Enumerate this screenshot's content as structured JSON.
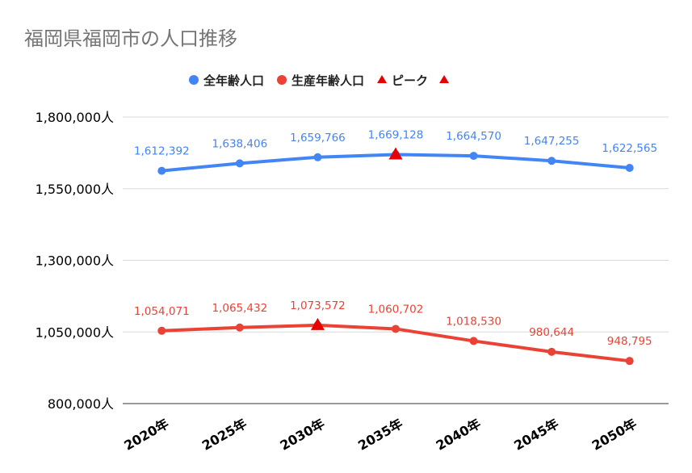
{
  "chart_data": {
    "type": "line",
    "title": "福岡県福岡市の人口推移",
    "xlabel": "",
    "ylabel": "",
    "categories": [
      "2020年",
      "2025年",
      "2030年",
      "2035年",
      "2040年",
      "2045年",
      "2050年"
    ],
    "ylim": [
      800000,
      1800000
    ],
    "yticks": [
      800000,
      1050000,
      1300000,
      1550000,
      1800000
    ],
    "ytick_labels": [
      "800,000人",
      "1,050,000人",
      "1,300,000人",
      "1,550,000人",
      "1,800,000人"
    ],
    "grid": true,
    "legend_position": "top",
    "series": [
      {
        "name": "全年齢人口",
        "color": "#4285f4",
        "values": [
          1612392,
          1638406,
          1659766,
          1669128,
          1664570,
          1647255,
          1622565
        ],
        "labels": [
          "1,612,392",
          "1,638,406",
          "1,659,766",
          "1,669,128",
          "1,664,570",
          "1,647,255",
          "1,622,565"
        ]
      },
      {
        "name": "生産年齢人口",
        "color": "#ea4335",
        "values": [
          1054071,
          1065432,
          1073572,
          1060702,
          1018530,
          980644,
          948795
        ],
        "labels": [
          "1,054,071",
          "1,065,432",
          "1,073,572",
          "1,060,702",
          "1,018,530",
          "980,644",
          "948,795"
        ]
      }
    ],
    "peak_markers": {
      "name": "ピーク",
      "color": "#e60000",
      "points": [
        {
          "category": "2035年",
          "value": 1669128
        },
        {
          "category": "2030年",
          "value": 1073572
        }
      ]
    }
  }
}
